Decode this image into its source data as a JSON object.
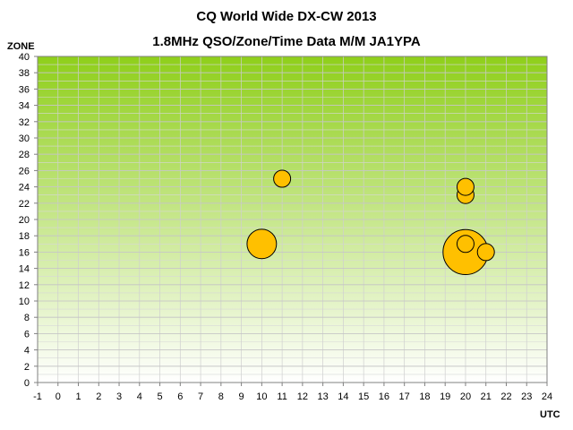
{
  "chart_data": {
    "type": "scatter",
    "title": "CQ World Wide DX-CW 2013",
    "subtitle": "1.8MHz QSO/Zone/Time Data M/M JA1YPA",
    "xlabel": "UTC",
    "ylabel": "ZONE",
    "xlim": [
      -1,
      24
    ],
    "ylim": [
      0,
      40
    ],
    "x_ticks": [
      "-1",
      "0",
      "1",
      "2",
      "3",
      "4",
      "5",
      "6",
      "7",
      "8",
      "9",
      "10",
      "11",
      "12",
      "13",
      "14",
      "15",
      "16",
      "17",
      "18",
      "19",
      "20",
      "21",
      "22",
      "23",
      "24"
    ],
    "y_ticks": [
      "0",
      "2",
      "4",
      "6",
      "8",
      "10",
      "12",
      "14",
      "16",
      "18",
      "20",
      "22",
      "24",
      "26",
      "28",
      "30",
      "32",
      "34",
      "36",
      "38",
      "40"
    ],
    "grid": true,
    "legend": "none",
    "plot_background": {
      "top_color": "#8fcf1a",
      "bottom_color": "#ffffff"
    },
    "marker_color": "#ffc000",
    "points": [
      {
        "x": 10,
        "y": 17,
        "size": 3
      },
      {
        "x": 11,
        "y": 25,
        "size": 1
      },
      {
        "x": 20,
        "y": 16,
        "size": 7
      },
      {
        "x": 20,
        "y": 17,
        "size": 1
      },
      {
        "x": 20,
        "y": 23,
        "size": 1
      },
      {
        "x": 20,
        "y": 24,
        "size": 1
      },
      {
        "x": 21,
        "y": 16,
        "size": 1
      }
    ]
  }
}
